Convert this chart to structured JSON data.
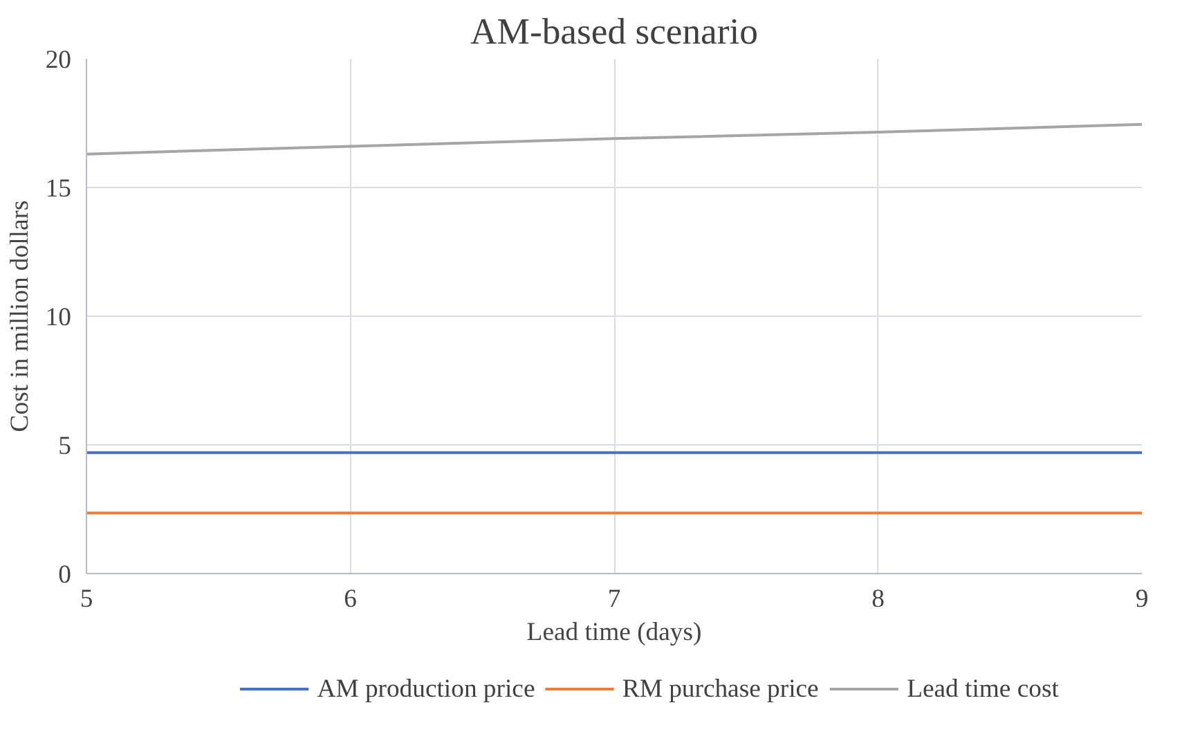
{
  "chart_data": {
    "type": "line",
    "title": "AM-based scenario",
    "xlabel": "Lead time (days)",
    "ylabel": "Cost in million dollars",
    "x": [
      5,
      6,
      7,
      8,
      9
    ],
    "series": [
      {
        "name": "AM production price",
        "color": "#4472c4",
        "values": [
          4.7,
          4.7,
          4.7,
          4.7,
          4.7
        ]
      },
      {
        "name": "RM purchase price",
        "color": "#ed7d31",
        "values": [
          2.35,
          2.35,
          2.35,
          2.35,
          2.35
        ]
      },
      {
        "name": "Lead time cost",
        "color": "#a5a5a5",
        "values": [
          16.3,
          16.6,
          16.9,
          17.15,
          17.45
        ]
      }
    ],
    "xlim": [
      5,
      9
    ],
    "xticks": [
      5,
      6,
      7,
      8,
      9
    ],
    "ylim": [
      0,
      20
    ],
    "yticks": [
      0,
      5,
      10,
      15,
      20
    ],
    "grid": true,
    "legend": "bottom",
    "marker": "none",
    "line_style": "solid"
  }
}
